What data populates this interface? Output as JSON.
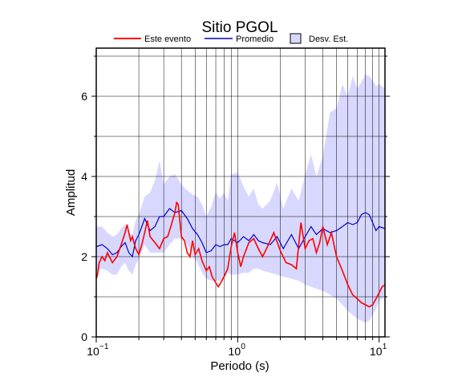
{
  "chart_data": {
    "type": "line",
    "title": "Sitio PGOL",
    "xlabel": "Periodo (s)",
    "ylabel": "Amplitud",
    "xscale": "log",
    "xlim": [
      0.1,
      11
    ],
    "ylim": [
      0,
      7.2
    ],
    "grid": true,
    "legend_placement": "top",
    "x_tick_labels": [
      "10",
      "10",
      "10"
    ],
    "x_tick_exponents": [
      "−1",
      "0",
      "1"
    ],
    "x_tick_values": [
      0.1,
      1,
      10
    ],
    "y_ticks": [
      0,
      2,
      4,
      6
    ],
    "legend": {
      "este": "Este evento",
      "promedio": "Promedio",
      "desv": "Desv. Est."
    },
    "colors": {
      "este": "#ff0000",
      "promedio": "#0000cc",
      "band": "#d8d8ff"
    },
    "series": [
      {
        "name": "Este evento",
        "x": [
          0.1,
          0.102,
          0.105,
          0.11,
          0.115,
          0.12,
          0.13,
          0.14,
          0.15,
          0.16,
          0.165,
          0.17,
          0.175,
          0.18,
          0.19,
          0.2,
          0.21,
          0.22,
          0.23,
          0.24,
          0.26,
          0.28,
          0.3,
          0.32,
          0.34,
          0.36,
          0.37,
          0.38,
          0.39,
          0.4,
          0.42,
          0.44,
          0.46,
          0.48,
          0.5,
          0.53,
          0.56,
          0.6,
          0.63,
          0.66,
          0.7,
          0.73,
          0.76,
          0.8,
          0.85,
          0.9,
          0.95,
          1.0,
          1.05,
          1.1,
          1.2,
          1.3,
          1.4,
          1.5,
          1.6,
          1.8,
          2.0,
          2.2,
          2.4,
          2.6,
          2.8,
          3.0,
          3.2,
          3.4,
          3.6,
          3.8,
          4.0,
          4.3,
          4.6,
          5.0,
          5.5,
          6.0,
          6.5,
          7.0,
          7.5,
          8.0,
          8.5,
          9.0,
          9.5,
          10.0,
          10.5,
          11.0
        ],
        "y": [
          1.45,
          1.55,
          1.85,
          2.0,
          1.9,
          2.1,
          1.85,
          2.0,
          2.3,
          2.6,
          2.8,
          2.6,
          2.4,
          2.5,
          2.2,
          2.05,
          2.3,
          2.6,
          2.9,
          2.5,
          2.35,
          2.2,
          2.45,
          2.5,
          2.8,
          3.1,
          3.35,
          3.3,
          2.9,
          2.5,
          2.4,
          2.1,
          2.0,
          2.4,
          2.05,
          2.2,
          1.9,
          1.65,
          1.75,
          1.5,
          1.35,
          1.25,
          1.35,
          1.5,
          1.7,
          2.25,
          2.6,
          2.1,
          1.75,
          2.0,
          2.35,
          2.45,
          2.2,
          2.0,
          2.2,
          2.6,
          2.15,
          1.85,
          1.8,
          1.7,
          2.85,
          2.2,
          2.4,
          2.45,
          2.1,
          2.35,
          2.75,
          2.3,
          2.6,
          2.0,
          1.65,
          1.3,
          1.05,
          0.95,
          0.85,
          0.8,
          0.75,
          0.8,
          0.95,
          1.1,
          1.25,
          1.3
        ]
      },
      {
        "name": "Promedio",
        "x": [
          0.1,
          0.11,
          0.12,
          0.13,
          0.14,
          0.15,
          0.16,
          0.17,
          0.18,
          0.19,
          0.2,
          0.22,
          0.24,
          0.26,
          0.28,
          0.3,
          0.33,
          0.36,
          0.4,
          0.44,
          0.48,
          0.52,
          0.56,
          0.6,
          0.65,
          0.7,
          0.75,
          0.8,
          0.85,
          0.9,
          1.0,
          1.1,
          1.2,
          1.3,
          1.4,
          1.5,
          1.7,
          1.9,
          2.1,
          2.4,
          2.7,
          3.0,
          3.3,
          3.6,
          4.0,
          4.5,
          5.0,
          5.5,
          6.0,
          6.5,
          7.0,
          7.5,
          8.0,
          8.5,
          9.0,
          9.5,
          10.0,
          11.0
        ],
        "y": [
          2.25,
          2.3,
          2.2,
          2.05,
          2.1,
          2.25,
          2.35,
          2.1,
          2.0,
          2.4,
          2.55,
          2.95,
          2.65,
          2.75,
          3.0,
          3.0,
          3.2,
          3.1,
          3.15,
          2.95,
          2.7,
          2.55,
          2.35,
          2.1,
          2.15,
          2.3,
          2.25,
          2.3,
          2.3,
          2.45,
          2.35,
          2.5,
          2.4,
          2.55,
          2.4,
          2.35,
          2.3,
          2.5,
          2.2,
          2.55,
          2.2,
          2.5,
          2.75,
          2.55,
          2.7,
          2.6,
          2.65,
          2.75,
          2.85,
          2.8,
          2.85,
          3.05,
          3.1,
          3.05,
          2.85,
          2.65,
          2.75,
          2.7
        ]
      }
    ],
    "band": {
      "name": "Desv. Est.",
      "x": [
        0.1,
        0.11,
        0.12,
        0.13,
        0.14,
        0.15,
        0.16,
        0.17,
        0.18,
        0.19,
        0.2,
        0.22,
        0.24,
        0.26,
        0.28,
        0.3,
        0.33,
        0.36,
        0.4,
        0.44,
        0.48,
        0.52,
        0.56,
        0.6,
        0.65,
        0.7,
        0.75,
        0.8,
        0.85,
        0.9,
        1.0,
        1.1,
        1.2,
        1.3,
        1.4,
        1.5,
        1.7,
        1.9,
        2.1,
        2.4,
        2.7,
        3.0,
        3.3,
        3.6,
        4.0,
        4.5,
        5.0,
        5.5,
        6.0,
        6.5,
        7.0,
        7.5,
        8.0,
        8.5,
        9.0,
        9.5,
        10.0,
        11.0
      ],
      "upper": [
        2.75,
        2.75,
        2.6,
        2.5,
        2.55,
        2.7,
        2.8,
        2.6,
        2.55,
        2.9,
        3.05,
        3.5,
        3.6,
        3.9,
        4.4,
        3.8,
        4.0,
        4.05,
        3.8,
        3.65,
        3.55,
        3.5,
        3.3,
        3.0,
        3.25,
        3.6,
        3.45,
        3.6,
        3.4,
        4.05,
        4.1,
        3.75,
        3.5,
        3.7,
        3.3,
        3.2,
        3.4,
        3.85,
        3.2,
        3.7,
        3.4,
        4.05,
        4.55,
        4.0,
        4.5,
        5.6,
        5.7,
        6.3,
        6.0,
        6.5,
        6.2,
        6.35,
        6.55,
        6.5,
        6.4,
        6.25,
        6.3,
        6.2
      ],
      "lower": [
        1.65,
        1.7,
        1.65,
        1.55,
        1.55,
        1.75,
        1.85,
        1.65,
        1.55,
        1.8,
        1.95,
        2.3,
        2.1,
        2.1,
        2.1,
        2.1,
        2.3,
        2.45,
        2.45,
        2.3,
        2.0,
        1.85,
        1.6,
        1.45,
        1.4,
        1.4,
        1.4,
        1.45,
        1.6,
        1.55,
        1.55,
        1.6,
        1.6,
        1.7,
        1.7,
        1.65,
        1.6,
        1.55,
        1.5,
        1.45,
        1.4,
        1.3,
        1.25,
        1.2,
        1.15,
        1.05,
        0.95,
        0.8,
        0.65,
        0.55,
        0.45,
        0.4,
        0.35,
        0.4,
        0.55,
        0.7,
        0.9,
        1.0
      ]
    }
  }
}
